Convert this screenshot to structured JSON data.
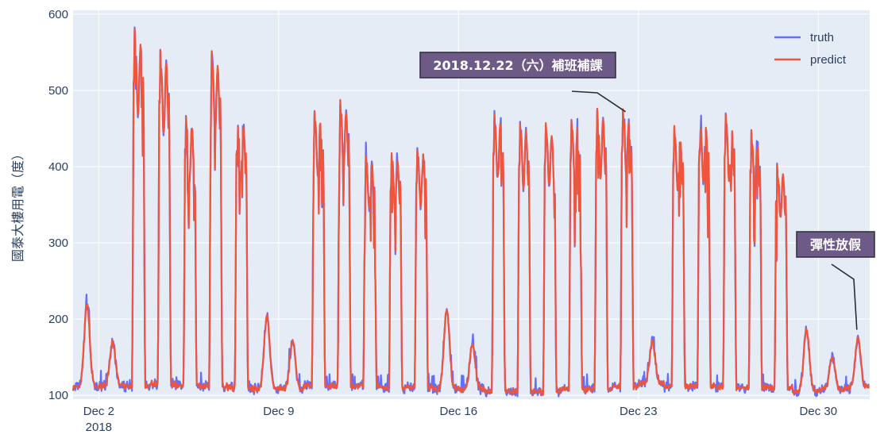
{
  "chart_data": {
    "type": "line",
    "title": "",
    "xlabel": "",
    "ylabel": "國泰大樓用電（度）",
    "x_range": [
      "2018-12-01",
      "2019-01-01"
    ],
    "ylim": [
      95,
      605
    ],
    "y_ticks": [
      100,
      200,
      300,
      400,
      500,
      600
    ],
    "x_ticks": [
      {
        "date": "2018-12-02",
        "label": "Dec 2",
        "sublabel": "2018"
      },
      {
        "date": "2018-12-09",
        "label": "Dec 9",
        "sublabel": ""
      },
      {
        "date": "2018-12-16",
        "label": "Dec 16",
        "sublabel": ""
      },
      {
        "date": "2018-12-23",
        "label": "Dec 23",
        "sublabel": ""
      },
      {
        "date": "2018-12-30",
        "label": "Dec 30",
        "sublabel": ""
      }
    ],
    "grid": true,
    "legend_position": "top-right",
    "colors": {
      "truth": "#636efa",
      "predict": "#ef553b",
      "plot_bg": "#e5ecf6",
      "annotation_bg": "#6e5a87"
    },
    "days": [
      {
        "date": "2018-12-01",
        "baseline": 110,
        "peak": 220,
        "kind": "weekend"
      },
      {
        "date": "2018-12-02",
        "baseline": 112,
        "peak": 170,
        "kind": "weekend"
      },
      {
        "date": "2018-12-03",
        "baseline": 112,
        "peak": 580,
        "kind": "weekday"
      },
      {
        "date": "2018-12-04",
        "baseline": 115,
        "peak": 550,
        "kind": "weekday"
      },
      {
        "date": "2018-12-05",
        "baseline": 113,
        "peak": 465,
        "kind": "weekday"
      },
      {
        "date": "2018-12-06",
        "baseline": 112,
        "peak": 550,
        "kind": "weekday"
      },
      {
        "date": "2018-12-07",
        "baseline": 110,
        "peak": 470,
        "kind": "weekday"
      },
      {
        "date": "2018-12-08",
        "baseline": 108,
        "peak": 205,
        "kind": "weekend"
      },
      {
        "date": "2018-12-09",
        "baseline": 108,
        "peak": 172,
        "kind": "weekend"
      },
      {
        "date": "2018-12-10",
        "baseline": 112,
        "peak": 475,
        "kind": "weekday"
      },
      {
        "date": "2018-12-11",
        "baseline": 112,
        "peak": 488,
        "kind": "weekday"
      },
      {
        "date": "2018-12-12",
        "baseline": 112,
        "peak": 415,
        "kind": "weekday"
      },
      {
        "date": "2018-12-13",
        "baseline": 110,
        "peak": 418,
        "kind": "weekday"
      },
      {
        "date": "2018-12-14",
        "baseline": 110,
        "peak": 425,
        "kind": "weekday"
      },
      {
        "date": "2018-12-15",
        "baseline": 108,
        "peak": 212,
        "kind": "weekend"
      },
      {
        "date": "2018-12-16",
        "baseline": 108,
        "peak": 168,
        "kind": "weekend"
      },
      {
        "date": "2018-12-17",
        "baseline": 105,
        "peak": 470,
        "kind": "weekday"
      },
      {
        "date": "2018-12-18",
        "baseline": 105,
        "peak": 458,
        "kind": "weekday"
      },
      {
        "date": "2018-12-19",
        "baseline": 105,
        "peak": 458,
        "kind": "weekday"
      },
      {
        "date": "2018-12-20",
        "baseline": 108,
        "peak": 462,
        "kind": "weekday"
      },
      {
        "date": "2018-12-21",
        "baseline": 108,
        "peak": 475,
        "kind": "weekday"
      },
      {
        "date": "2018-12-22",
        "baseline": 112,
        "peak": 475,
        "kind": "weekday"
      },
      {
        "date": "2018-12-23",
        "baseline": 115,
        "peak": 172,
        "kind": "weekend"
      },
      {
        "date": "2018-12-24",
        "baseline": 112,
        "peak": 452,
        "kind": "weekday"
      },
      {
        "date": "2018-12-25",
        "baseline": 112,
        "peak": 465,
        "kind": "weekday"
      },
      {
        "date": "2018-12-26",
        "baseline": 110,
        "peak": 468,
        "kind": "weekday"
      },
      {
        "date": "2018-12-27",
        "baseline": 110,
        "peak": 445,
        "kind": "weekday"
      },
      {
        "date": "2018-12-28",
        "baseline": 110,
        "peak": 400,
        "kind": "weekday"
      },
      {
        "date": "2018-12-29",
        "baseline": 105,
        "peak": 187,
        "kind": "weekend"
      },
      {
        "date": "2018-12-30",
        "baseline": 108,
        "peak": 150,
        "kind": "weekend"
      },
      {
        "date": "2018-12-31",
        "baseline": 110,
        "peak": 176,
        "kind": "holiday"
      }
    ],
    "series": [
      {
        "name": "truth",
        "color": "#636efa"
      },
      {
        "name": "predict",
        "color": "#ef553b"
      }
    ],
    "annotations": [
      {
        "text": "2018.12.22（六）補班補課",
        "date": "2018-12-22",
        "y": 472
      },
      {
        "text": "彈性放假",
        "date": "2018-12-31",
        "y": 186
      }
    ]
  }
}
